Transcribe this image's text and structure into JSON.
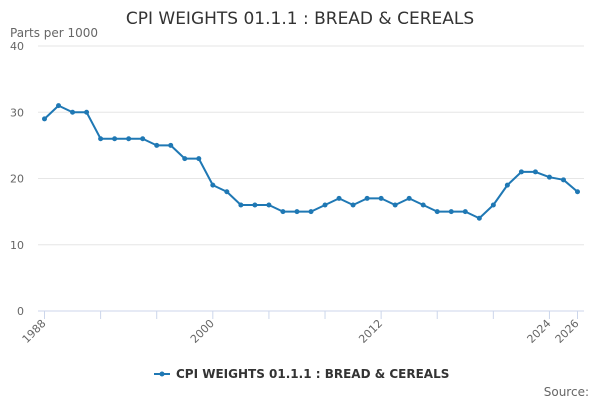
{
  "chart_data": {
    "type": "line",
    "title": "CPI WEIGHTS 01.1.1 : BREAD & CEREALS",
    "ylabel": "Parts per 1000",
    "xlabel": "",
    "ylim": [
      0,
      40
    ],
    "y_ticks": [
      0,
      10,
      20,
      30,
      40
    ],
    "xlim": [
      1988,
      2026
    ],
    "x_ticks": [
      1988,
      2000,
      2012,
      2024,
      2026
    ],
    "x_tick_labels": [
      "1988",
      "2000",
      "2012",
      "2024",
      "2026"
    ],
    "series": [
      {
        "name": "CPI WEIGHTS 01.1.1 : BREAD & CEREALS",
        "color": "#1f78b4",
        "x": [
          1988,
          1989,
          1990,
          1991,
          1992,
          1993,
          1994,
          1995,
          1996,
          1997,
          1998,
          1999,
          2000,
          2001,
          2002,
          2003,
          2004,
          2005,
          2006,
          2007,
          2008,
          2009,
          2010,
          2011,
          2012,
          2013,
          2014,
          2015,
          2016,
          2017,
          2018,
          2019,
          2020,
          2021,
          2022,
          2023,
          2024,
          2025,
          2026
        ],
        "values": [
          29,
          31,
          30,
          30,
          26,
          26,
          26,
          26,
          25,
          25,
          23,
          23,
          19,
          18,
          16,
          16,
          16,
          15,
          15,
          15,
          16,
          17,
          16,
          17,
          17,
          16,
          17,
          16,
          15,
          15,
          15,
          14,
          16,
          19,
          21,
          21,
          20.2,
          19.8,
          18
        ]
      }
    ],
    "legend": "bottom-center",
    "source_label": "Source:"
  }
}
